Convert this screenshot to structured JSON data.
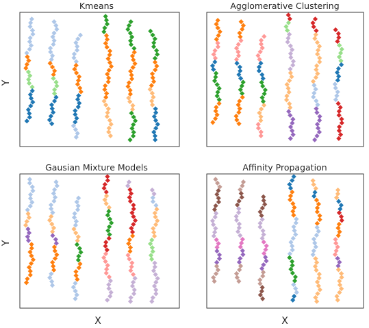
{
  "figure": {
    "ylabel_top": "Y",
    "ylabel_bottom": "Y",
    "xlabel_left": "X",
    "xlabel_right": "X"
  },
  "colors": {
    "tab_blue": "#1f77b4",
    "light_blue": "#aec7e8",
    "orange": "#ff7f0e",
    "light_orange": "#ffbb78",
    "green": "#2ca02c",
    "light_green": "#98df8a",
    "red": "#d62728",
    "pink": "#ff9896",
    "purple": "#9467bd",
    "lavender": "#c5b0d5",
    "brown": "#8c564b",
    "tan": "#c49c94",
    "magenta": "#e377c2"
  },
  "chart_data": [
    {
      "type": "scatter",
      "title": "Kmeans",
      "xlabel": "",
      "ylabel": "Y",
      "grid": false,
      "marker": "diamond",
      "columns": [
        {
          "x": 0.06,
          "y_top": 0.95,
          "y_bottom": 0.19,
          "segments": [
            [
              "light_blue",
              0.37
            ],
            [
              "orange",
              0.12
            ],
            [
              "light_green",
              0.2
            ],
            [
              "tab_blue",
              0.31
            ]
          ]
        },
        {
          "x": 0.21,
          "y_top": 0.93,
          "y_bottom": 0.17,
          "segments": [
            [
              "light_blue",
              0.38
            ],
            [
              "orange",
              0.16
            ],
            [
              "light_green",
              0.2
            ],
            [
              "tab_blue",
              0.26
            ]
          ]
        },
        {
          "x": 0.36,
          "y_top": 0.83,
          "y_bottom": 0.07,
          "segments": [
            [
              "light_blue",
              0.28
            ],
            [
              "orange",
              0.3
            ],
            [
              "tab_blue",
              0.28
            ],
            [
              "light_blue",
              0.14
            ]
          ]
        },
        {
          "x": 0.55,
          "y_top": 0.97,
          "y_bottom": 0.08,
          "segments": [
            [
              "green",
              0.16
            ],
            [
              "orange",
              0.52
            ],
            [
              "light_orange",
              0.32
            ]
          ]
        },
        {
          "x": 0.7,
          "y_top": 0.93,
          "y_bottom": 0.05,
          "segments": [
            [
              "green",
              0.24
            ],
            [
              "orange",
              0.38
            ],
            [
              "light_orange",
              0.14
            ],
            [
              "green",
              0.24
            ]
          ]
        },
        {
          "x": 0.84,
          "y_top": 0.86,
          "y_bottom": 0.05,
          "segments": [
            [
              "green",
              0.28
            ],
            [
              "orange",
              0.22
            ],
            [
              "light_orange",
              0.18
            ],
            [
              "tab_blue",
              0.32
            ]
          ]
        }
      ]
    },
    {
      "type": "scatter",
      "title": "Agglomerative Clustering",
      "xlabel": "",
      "ylabel": "",
      "grid": false,
      "marker": "diamond",
      "columns": [
        {
          "x": 0.06,
          "y_top": 0.94,
          "y_bottom": 0.18,
          "segments": [
            [
              "orange",
              0.2
            ],
            [
              "pink",
              0.18
            ],
            [
              "tab_blue",
              0.12
            ],
            [
              "green",
              0.28
            ],
            [
              "orange",
              0.22
            ]
          ]
        },
        {
          "x": 0.21,
          "y_top": 0.93,
          "y_bottom": 0.17,
          "segments": [
            [
              "orange",
              0.18
            ],
            [
              "pink",
              0.2
            ],
            [
              "tab_blue",
              0.2
            ],
            [
              "green",
              0.16
            ],
            [
              "orange",
              0.26
            ]
          ]
        },
        {
          "x": 0.35,
          "y_top": 0.82,
          "y_bottom": 0.08,
          "segments": [
            [
              "pink",
              0.24
            ],
            [
              "tab_blue",
              0.2
            ],
            [
              "green",
              0.22
            ],
            [
              "light_orange",
              0.2
            ],
            [
              "pink",
              0.14
            ]
          ]
        },
        {
          "x": 0.53,
          "y_top": 0.98,
          "y_bottom": 0.06,
          "segments": [
            [
              "red",
              0.05
            ],
            [
              "light_green",
              0.1
            ],
            [
              "lavender",
              0.3
            ],
            [
              "light_orange",
              0.3
            ],
            [
              "purple",
              0.25
            ]
          ]
        },
        {
          "x": 0.7,
          "y_top": 0.95,
          "y_bottom": 0.05,
          "segments": [
            [
              "red",
              0.12
            ],
            [
              "light_orange",
              0.42
            ],
            [
              "light_blue",
              0.2
            ],
            [
              "purple",
              0.26
            ]
          ]
        },
        {
          "x": 0.84,
          "y_top": 0.87,
          "y_bottom": 0.06,
          "segments": [
            [
              "red",
              0.14
            ],
            [
              "light_green",
              0.16
            ],
            [
              "tab_blue",
              0.18
            ],
            [
              "light_blue",
              0.18
            ],
            [
              "red",
              0.34
            ]
          ]
        }
      ]
    },
    {
      "type": "scatter",
      "title": "Gausian Mixture Models",
      "xlabel": "",
      "ylabel": "Y",
      "grid": false,
      "marker": "diamond",
      "columns": [
        {
          "x": 0.06,
          "y_top": 0.96,
          "y_bottom": 0.19,
          "segments": [
            [
              "light_blue",
              0.3
            ],
            [
              "light_orange",
              0.18
            ],
            [
              "purple",
              0.12
            ],
            [
              "orange",
              0.4
            ]
          ]
        },
        {
          "x": 0.21,
          "y_top": 0.94,
          "y_bottom": 0.17,
          "segments": [
            [
              "light_blue",
              0.3
            ],
            [
              "light_orange",
              0.2
            ],
            [
              "purple",
              0.12
            ],
            [
              "orange",
              0.26
            ],
            [
              "light_blue",
              0.12
            ]
          ]
        },
        {
          "x": 0.36,
          "y_top": 0.82,
          "y_bottom": 0.07,
          "segments": [
            [
              "light_blue",
              0.3
            ],
            [
              "light_orange",
              0.14
            ],
            [
              "green",
              0.2
            ],
            [
              "orange",
              0.18
            ],
            [
              "light_blue",
              0.18
            ]
          ]
        },
        {
          "x": 0.55,
          "y_top": 0.98,
          "y_bottom": 0.06,
          "segments": [
            [
              "red",
              0.14
            ],
            [
              "light_orange",
              0.14
            ],
            [
              "green",
              0.2
            ],
            [
              "red",
              0.14
            ],
            [
              "pink",
              0.2
            ],
            [
              "lavender",
              0.18
            ]
          ]
        },
        {
          "x": 0.7,
          "y_top": 0.94,
          "y_bottom": 0.05,
          "segments": [
            [
              "lavender",
              0.06
            ],
            [
              "red",
              0.18
            ],
            [
              "red",
              0.2
            ],
            [
              "orange",
              0.16
            ],
            [
              "pink",
              0.2
            ],
            [
              "lavender",
              0.2
            ]
          ]
        },
        {
          "x": 0.84,
          "y_top": 0.88,
          "y_bottom": 0.05,
          "segments": [
            [
              "lavender",
              0.06
            ],
            [
              "light_blue",
              0.1
            ],
            [
              "light_orange",
              0.1
            ],
            [
              "light_orange",
              0.16
            ],
            [
              "light_green",
              0.22
            ],
            [
              "lavender",
              0.36
            ]
          ]
        }
      ]
    },
    {
      "type": "scatter",
      "title": "Affinity Propagation",
      "xlabel": "",
      "ylabel": "",
      "grid": false,
      "marker": "diamond",
      "columns": [
        {
          "x": 0.06,
          "y_top": 0.96,
          "y_bottom": 0.2,
          "segments": [
            [
              "tan",
              0.1
            ],
            [
              "brown",
              0.22
            ],
            [
              "lavender",
              0.24
            ],
            [
              "magenta",
              0.12
            ],
            [
              "purple",
              0.14
            ],
            [
              "tan",
              0.18
            ]
          ]
        },
        {
          "x": 0.21,
          "y_top": 0.94,
          "y_bottom": 0.2,
          "segments": [
            [
              "tan",
              0.08
            ],
            [
              "brown",
              0.16
            ],
            [
              "lavender",
              0.3
            ],
            [
              "magenta",
              0.12
            ],
            [
              "purple",
              0.16
            ],
            [
              "tan",
              0.18
            ]
          ]
        },
        {
          "x": 0.36,
          "y_top": 0.83,
          "y_bottom": 0.07,
          "segments": [
            [
              "brown",
              0.2
            ],
            [
              "lavender",
              0.22
            ],
            [
              "magenta",
              0.16
            ],
            [
              "purple",
              0.14
            ],
            [
              "tan",
              0.14
            ],
            [
              "brown",
              0.14
            ]
          ]
        },
        {
          "x": 0.55,
          "y_top": 0.98,
          "y_bottom": 0.06,
          "segments": [
            [
              "tab_blue",
              0.12
            ],
            [
              "orange",
              0.22
            ],
            [
              "light_blue",
              0.3
            ],
            [
              "green",
              0.22
            ],
            [
              "light_blue",
              0.08
            ],
            [
              "tab_blue",
              0.06
            ]
          ]
        },
        {
          "x": 0.7,
          "y_top": 0.95,
          "y_bottom": 0.05,
          "segments": [
            [
              "light_orange",
              0.08
            ],
            [
              "tab_blue",
              0.06
            ],
            [
              "orange",
              0.24
            ],
            [
              "light_blue",
              0.24
            ],
            [
              "light_orange",
              0.38
            ]
          ]
        },
        {
          "x": 0.84,
          "y_top": 0.88,
          "y_bottom": 0.06,
          "segments": [
            [
              "light_orange",
              0.08
            ],
            [
              "tab_blue",
              0.12
            ],
            [
              "red",
              0.08
            ],
            [
              "orange",
              0.16
            ],
            [
              "pink",
              0.16
            ],
            [
              "purple",
              0.12
            ],
            [
              "light_orange",
              0.28
            ]
          ]
        }
      ]
    }
  ]
}
